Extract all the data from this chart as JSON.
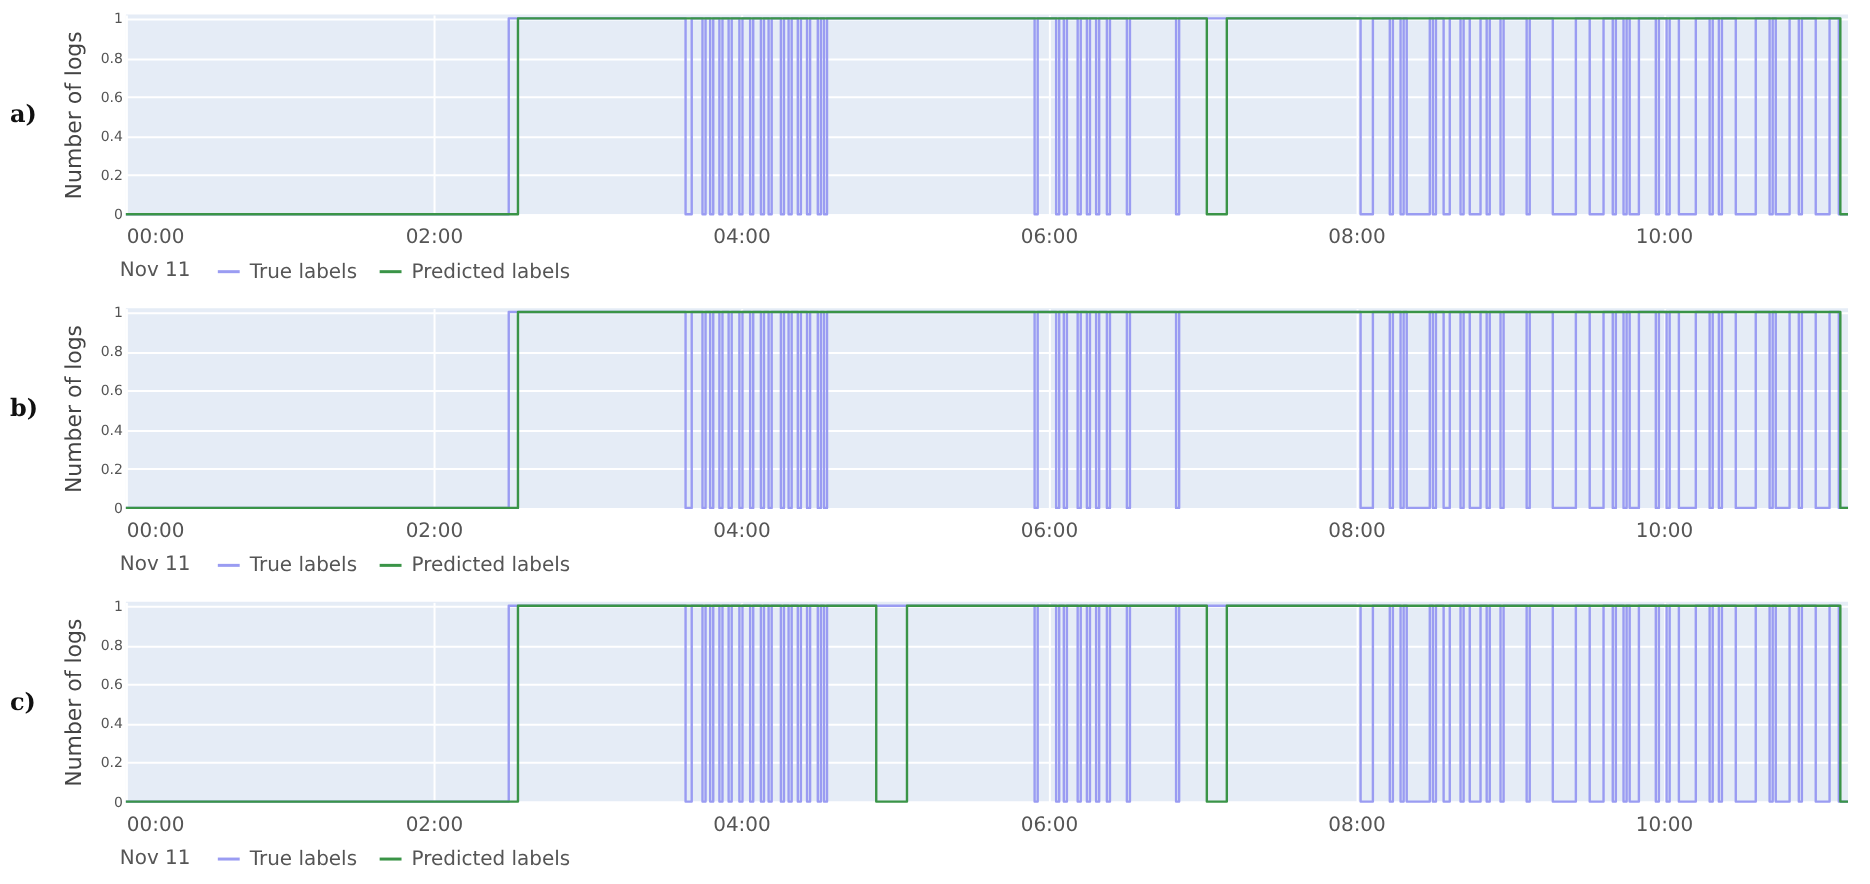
{
  "chart_data": [
    {
      "type": "step",
      "ylabel": "Number of logs",
      "annotations": [
        "a)",
        "Nov 11"
      ],
      "legend": "bottom left",
      "grid": true,
      "xlim": [
        0,
        11.2
      ],
      "xticks": [
        {
          "value": 0,
          "label": "00:00"
        },
        {
          "value": 2,
          "label": "02:00"
        },
        {
          "value": 4,
          "label": "04:00"
        },
        {
          "value": 6,
          "label": "06:00"
        },
        {
          "value": 8,
          "label": "08:00"
        },
        {
          "value": 10,
          "label": "10:00"
        }
      ],
      "ylim": [
        0,
        1.02
      ],
      "yticks": [
        0,
        0.2,
        0.4,
        0.6,
        0.8,
        1
      ],
      "series": [
        {
          "name": "True labels",
          "color": "#9a9cf2",
          "x": [
            0,
            2.49,
            3.64,
            3.68,
            3.75,
            3.77,
            3.8,
            3.82,
            3.86,
            3.88,
            3.92,
            3.94,
            3.99,
            4.01,
            4.06,
            4.08,
            4.13,
            4.15,
            4.18,
            4.2,
            4.26,
            4.28,
            4.31,
            4.33,
            4.37,
            4.39,
            4.43,
            4.45,
            4.5,
            4.52,
            4.54,
            4.56,
            5.91,
            5.93,
            6.05,
            6.07,
            6.1,
            6.12,
            6.19,
            6.21,
            6.25,
            6.27,
            6.31,
            6.33,
            6.38,
            6.4,
            6.51,
            6.53,
            6.83,
            6.85,
            8.03,
            8.11,
            8.22,
            8.24,
            8.29,
            8.31,
            8.33,
            8.48,
            8.5,
            8.52,
            8.57,
            8.61,
            8.68,
            8.7,
            8.74,
            8.81,
            8.85,
            8.87,
            8.94,
            8.96,
            9.11,
            9.13,
            9.28,
            9.43,
            9.52,
            9.61,
            9.67,
            9.69,
            9.74,
            9.76,
            9.78,
            9.84,
            9.95,
            9.97,
            10.02,
            10.04,
            10.1,
            10.21,
            10.3,
            10.32,
            10.36,
            10.38,
            10.47,
            10.6,
            10.69,
            10.71,
            10.73,
            10.82,
            10.88,
            10.9,
            10.99,
            11.08,
            11.14,
            11.2
          ],
          "values": [
            0,
            1,
            0,
            1,
            0,
            1,
            0,
            1,
            0,
            1,
            0,
            1,
            0,
            1,
            0,
            1,
            0,
            1,
            0,
            1,
            0,
            1,
            0,
            1,
            0,
            1,
            0,
            1,
            0,
            1,
            0,
            1,
            0,
            1,
            0,
            1,
            0,
            1,
            0,
            1,
            0,
            1,
            0,
            1,
            0,
            1,
            0,
            1,
            0,
            1,
            0,
            1,
            0,
            1,
            0,
            1,
            0,
            1,
            0,
            1,
            0,
            1,
            0,
            1,
            0,
            1,
            0,
            1,
            0,
            1,
            0,
            1,
            0,
            1,
            0,
            1,
            0,
            1,
            0,
            1,
            0,
            1,
            0,
            1,
            0,
            1,
            0,
            1,
            0,
            1,
            0,
            1,
            0,
            1,
            0,
            1,
            0,
            1,
            0,
            1,
            0,
            1,
            0,
            0
          ]
        },
        {
          "name": "Predicted labels",
          "color": "#3a9447",
          "x": [
            0,
            2.55,
            7.03,
            7.16,
            11.15,
            11.2
          ],
          "values": [
            0,
            1,
            0,
            1,
            0,
            0
          ]
        }
      ]
    },
    {
      "type": "step",
      "ylabel": "Number of logs",
      "annotations": [
        "b)",
        "Nov 11"
      ],
      "legend": "bottom left",
      "grid": true,
      "xlim": [
        0,
        11.2
      ],
      "xticks": [
        {
          "value": 0,
          "label": "00:00"
        },
        {
          "value": 2,
          "label": "02:00"
        },
        {
          "value": 4,
          "label": "04:00"
        },
        {
          "value": 6,
          "label": "06:00"
        },
        {
          "value": 8,
          "label": "08:00"
        },
        {
          "value": 10,
          "label": "10:00"
        }
      ],
      "ylim": [
        0,
        1.02
      ],
      "yticks": [
        0,
        0.2,
        0.4,
        0.6,
        0.8,
        1
      ],
      "series": [
        {
          "name": "True labels",
          "color": "#9a9cf2",
          "x": [
            0,
            2.49,
            3.64,
            3.68,
            3.75,
            3.77,
            3.8,
            3.82,
            3.86,
            3.88,
            3.92,
            3.94,
            3.99,
            4.01,
            4.06,
            4.08,
            4.13,
            4.15,
            4.18,
            4.2,
            4.26,
            4.28,
            4.31,
            4.33,
            4.37,
            4.39,
            4.43,
            4.45,
            4.5,
            4.52,
            4.54,
            4.56,
            5.91,
            5.93,
            6.05,
            6.07,
            6.1,
            6.12,
            6.19,
            6.21,
            6.25,
            6.27,
            6.31,
            6.33,
            6.38,
            6.4,
            6.51,
            6.53,
            6.83,
            6.85,
            8.03,
            8.11,
            8.22,
            8.24,
            8.29,
            8.31,
            8.33,
            8.48,
            8.5,
            8.52,
            8.57,
            8.61,
            8.68,
            8.7,
            8.74,
            8.81,
            8.85,
            8.87,
            8.94,
            8.96,
            9.11,
            9.13,
            9.28,
            9.43,
            9.52,
            9.61,
            9.67,
            9.69,
            9.74,
            9.76,
            9.78,
            9.84,
            9.95,
            9.97,
            10.02,
            10.04,
            10.1,
            10.21,
            10.3,
            10.32,
            10.36,
            10.38,
            10.47,
            10.6,
            10.69,
            10.71,
            10.73,
            10.82,
            10.88,
            10.9,
            10.99,
            11.08,
            11.14,
            11.2
          ],
          "values": [
            0,
            1,
            0,
            1,
            0,
            1,
            0,
            1,
            0,
            1,
            0,
            1,
            0,
            1,
            0,
            1,
            0,
            1,
            0,
            1,
            0,
            1,
            0,
            1,
            0,
            1,
            0,
            1,
            0,
            1,
            0,
            1,
            0,
            1,
            0,
            1,
            0,
            1,
            0,
            1,
            0,
            1,
            0,
            1,
            0,
            1,
            0,
            1,
            0,
            1,
            0,
            1,
            0,
            1,
            0,
            1,
            0,
            1,
            0,
            1,
            0,
            1,
            0,
            1,
            0,
            1,
            0,
            1,
            0,
            1,
            0,
            1,
            0,
            1,
            0,
            1,
            0,
            1,
            0,
            1,
            0,
            1,
            0,
            1,
            0,
            1,
            0,
            1,
            0,
            1,
            0,
            1,
            0,
            1,
            0,
            1,
            0,
            1,
            0,
            1,
            0,
            1,
            0,
            0
          ]
        },
        {
          "name": "Predicted labels",
          "color": "#3a9447",
          "x": [
            0,
            2.55,
            11.15,
            11.2
          ],
          "values": [
            0,
            1,
            0,
            0
          ]
        }
      ]
    },
    {
      "type": "step",
      "ylabel": "Number of logs",
      "annotations": [
        "c)",
        "Nov 11"
      ],
      "legend": "bottom left",
      "grid": true,
      "xlim": [
        0,
        11.2
      ],
      "xticks": [
        {
          "value": 0,
          "label": "00:00"
        },
        {
          "value": 2,
          "label": "02:00"
        },
        {
          "value": 4,
          "label": "04:00"
        },
        {
          "value": 6,
          "label": "06:00"
        },
        {
          "value": 8,
          "label": "08:00"
        },
        {
          "value": 10,
          "label": "10:00"
        }
      ],
      "ylim": [
        0,
        1.02
      ],
      "yticks": [
        0,
        0.2,
        0.4,
        0.6,
        0.8,
        1
      ],
      "series": [
        {
          "name": "True labels",
          "color": "#9a9cf2",
          "x": [
            0,
            2.49,
            3.64,
            3.68,
            3.75,
            3.77,
            3.8,
            3.82,
            3.86,
            3.88,
            3.92,
            3.94,
            3.99,
            4.01,
            4.06,
            4.08,
            4.13,
            4.15,
            4.18,
            4.2,
            4.26,
            4.28,
            4.31,
            4.33,
            4.37,
            4.39,
            4.43,
            4.45,
            4.5,
            4.52,
            4.54,
            4.56,
            5.91,
            5.93,
            6.05,
            6.07,
            6.1,
            6.12,
            6.19,
            6.21,
            6.25,
            6.27,
            6.31,
            6.33,
            6.38,
            6.4,
            6.51,
            6.53,
            6.83,
            6.85,
            8.03,
            8.11,
            8.22,
            8.24,
            8.29,
            8.31,
            8.33,
            8.48,
            8.5,
            8.52,
            8.57,
            8.61,
            8.68,
            8.7,
            8.74,
            8.81,
            8.85,
            8.87,
            8.94,
            8.96,
            9.11,
            9.13,
            9.28,
            9.43,
            9.52,
            9.61,
            9.67,
            9.69,
            9.74,
            9.76,
            9.78,
            9.84,
            9.95,
            9.97,
            10.02,
            10.04,
            10.1,
            10.21,
            10.3,
            10.32,
            10.36,
            10.38,
            10.47,
            10.6,
            10.69,
            10.71,
            10.73,
            10.82,
            10.88,
            10.9,
            10.99,
            11.08,
            11.14,
            11.2
          ],
          "values": [
            0,
            1,
            0,
            1,
            0,
            1,
            0,
            1,
            0,
            1,
            0,
            1,
            0,
            1,
            0,
            1,
            0,
            1,
            0,
            1,
            0,
            1,
            0,
            1,
            0,
            1,
            0,
            1,
            0,
            1,
            0,
            1,
            0,
            1,
            0,
            1,
            0,
            1,
            0,
            1,
            0,
            1,
            0,
            1,
            0,
            1,
            0,
            1,
            0,
            1,
            0,
            1,
            0,
            1,
            0,
            1,
            0,
            1,
            0,
            1,
            0,
            1,
            0,
            1,
            0,
            1,
            0,
            1,
            0,
            1,
            0,
            1,
            0,
            1,
            0,
            1,
            0,
            1,
            0,
            1,
            0,
            1,
            0,
            1,
            0,
            1,
            0,
            1,
            0,
            1,
            0,
            1,
            0,
            1,
            0,
            1,
            0,
            1,
            0,
            1,
            0,
            1,
            0,
            0
          ]
        },
        {
          "name": "Predicted labels",
          "color": "#3a9447",
          "x": [
            0,
            2.55,
            4.88,
            5.08,
            7.03,
            7.16,
            11.15,
            11.2
          ],
          "values": [
            0,
            1,
            0,
            1,
            0,
            1,
            0,
            0
          ]
        }
      ]
    }
  ]
}
